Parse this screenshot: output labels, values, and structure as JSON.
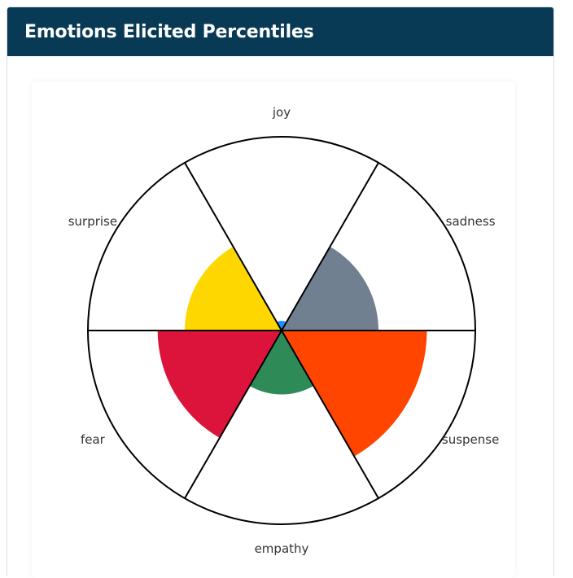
{
  "header": {
    "title": "Emotions Elicited Percentiles"
  },
  "chart_data": {
    "type": "polar-area",
    "title": "",
    "categories": [
      "joy",
      "sadness",
      "suspense",
      "empathy",
      "fear",
      "surprise"
    ],
    "values": [
      5,
      50,
      75,
      33,
      64,
      50
    ],
    "colors": [
      "#1e90ff",
      "#708090",
      "#ff4500",
      "#2e8b57",
      "#dc143c",
      "#ffd700"
    ],
    "rmax": 100,
    "grid": true
  }
}
